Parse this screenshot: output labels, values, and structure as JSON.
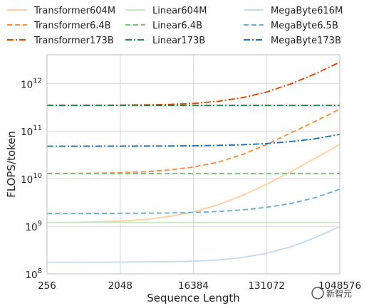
{
  "chart_data": {
    "type": "line",
    "xlabel": "Sequence Length",
    "ylabel": "FLOPS/token",
    "x_scale": "log2",
    "y_scale": "log10",
    "xlim": [
      256,
      1048576
    ],
    "ylim": [
      100000000.0,
      4000000000000.0
    ],
    "x_ticks": [
      {
        "value": 256,
        "label": "256"
      },
      {
        "value": 2048,
        "label": "2048"
      },
      {
        "value": 16384,
        "label": "16384"
      },
      {
        "value": 131072,
        "label": "131072"
      },
      {
        "value": 1048576,
        "label": "1048576"
      }
    ],
    "y_ticks": [
      {
        "value": 100000000.0,
        "base": "10",
        "exp": "8"
      },
      {
        "value": 1000000000.0,
        "base": "10",
        "exp": "9"
      },
      {
        "value": 10000000000.0,
        "base": "10",
        "exp": "10"
      },
      {
        "value": 100000000000.0,
        "base": "10",
        "exp": "11"
      },
      {
        "value": 1000000000000.0,
        "base": "10",
        "exp": "12"
      }
    ],
    "grid": true,
    "legend_position": "top (3 columns)",
    "x": [
      256,
      512,
      1024,
      2048,
      4096,
      8192,
      16384,
      32768,
      65536,
      131072,
      262144,
      524288,
      1048576
    ],
    "series": [
      {
        "name": "Transformer604M",
        "color": "#fdd0a2",
        "dash": "solid",
        "values": [
          1200000000.0,
          1210000000.0,
          1230000000.0,
          1280000000.0,
          1380000000.0,
          1600000000.0,
          2000000000.0,
          2800000000.0,
          4400000000.0,
          7600000000.0,
          14000000000.0,
          27000000000.0,
          52000000000.0
        ]
      },
      {
        "name": "Transformer6.4B",
        "color": "#fd8d3c",
        "dash": "dashed",
        "values": [
          12800000000.0,
          12900000000.0,
          13000000000.0,
          13300000000.0,
          14000000000.0,
          15200000000.0,
          17500000000.0,
          22000000000.0,
          32000000000.0,
          52000000000.0,
          92000000000.0,
          160000000000.0,
          290000000000.0
        ]
      },
      {
        "name": "Transformer173B",
        "color": "#d94801",
        "dash": "dashdot",
        "values": [
          346000000000.0,
          347000000000.0,
          348000000000.0,
          350000000000.0,
          355000000000.0,
          362000000000.0,
          380000000000.0,
          420000000000.0,
          500000000000.0,
          660000000000.0,
          980000000000.0,
          1600000000000.0,
          2800000000000.0
        ]
      },
      {
        "name": "Linear604M",
        "color": "#c7e9c0",
        "dash": "solid",
        "values": [
          1200000000.0,
          1200000000.0,
          1200000000.0,
          1200000000.0,
          1200000000.0,
          1200000000.0,
          1200000000.0,
          1200000000.0,
          1200000000.0,
          1200000000.0,
          1200000000.0,
          1200000000.0,
          1200000000.0
        ]
      },
      {
        "name": "Linear6.4B",
        "color": "#74c476",
        "dash": "dashed",
        "values": [
          12800000000.0,
          12800000000.0,
          12800000000.0,
          12800000000.0,
          12800000000.0,
          12800000000.0,
          12800000000.0,
          12800000000.0,
          12800000000.0,
          12800000000.0,
          12800000000.0,
          12800000000.0,
          12800000000.0
        ]
      },
      {
        "name": "Linear173B",
        "color": "#238b45",
        "dash": "dashdot",
        "values": [
          346000000000.0,
          346000000000.0,
          346000000000.0,
          346000000000.0,
          346000000000.0,
          346000000000.0,
          346000000000.0,
          346000000000.0,
          346000000000.0,
          346000000000.0,
          346000000000.0,
          346000000000.0,
          346000000000.0
        ]
      },
      {
        "name": "MegaByte616M",
        "color": "#c6dbef",
        "dash": "solid",
        "values": [
          175000000.0,
          175000000.0,
          176000000.0,
          177000000.0,
          178000000.0,
          180000000.0,
          185000000.0,
          195000000.0,
          220000000.0,
          270000000.0,
          370000000.0,
          580000000.0,
          980000000.0
        ]
      },
      {
        "name": "MegaByte6.5B",
        "color": "#6baed6",
        "dash": "dashed",
        "values": [
          1850000000.0,
          1850000000.0,
          1860000000.0,
          1870000000.0,
          1880000000.0,
          1900000000.0,
          1950000000.0,
          2050000000.0,
          2200000000.0,
          2500000000.0,
          3000000000.0,
          4000000000.0,
          6000000000.0
        ]
      },
      {
        "name": "MegaByte173B",
        "color": "#2171b5",
        "dash": "dashdot",
        "values": [
          48000000000.0,
          48000000000.0,
          48100000000.0,
          48200000000.0,
          48300000000.0,
          48500000000.0,
          49000000000.0,
          50000000000.0,
          51500000000.0,
          54500000000.0,
          60000000000.0,
          69000000000.0,
          85000000000.0
        ]
      }
    ]
  },
  "watermark": {
    "text": "新智元"
  }
}
